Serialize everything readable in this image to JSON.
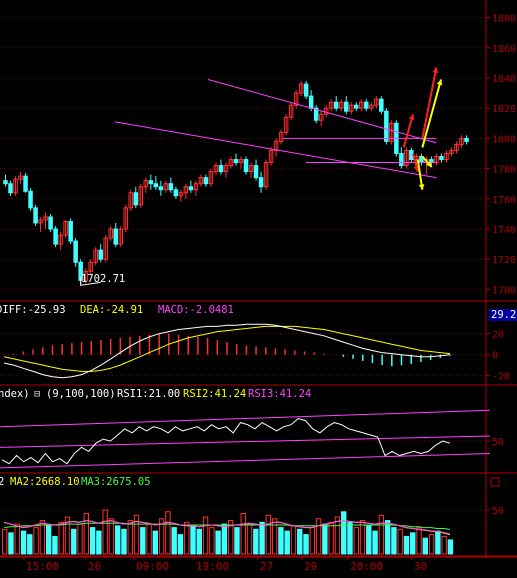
{
  "chart_data": [
    {
      "type": "candlestick",
      "panel": "price",
      "y_ticks": [
        "1880",
        "1860",
        "1840",
        "1820",
        "1800",
        "1780",
        "1760",
        "1740",
        "1720",
        "1700"
      ],
      "ylim": [
        1693,
        1885
      ],
      "low_annotation": "1702.71",
      "candles": [
        [
          1772,
          1776,
          1768,
          1770
        ],
        [
          1770,
          1772,
          1762,
          1764
        ],
        [
          1764,
          1775,
          1762,
          1773
        ],
        [
          1773,
          1778,
          1770,
          1775
        ],
        [
          1775,
          1777,
          1764,
          1765
        ],
        [
          1765,
          1767,
          1752,
          1754
        ],
        [
          1754,
          1756,
          1742,
          1744
        ],
        [
          1744,
          1748,
          1738,
          1746
        ],
        [
          1746,
          1751,
          1740,
          1748
        ],
        [
          1748,
          1750,
          1738,
          1740
        ],
        [
          1740,
          1742,
          1728,
          1730
        ],
        [
          1730,
          1738,
          1726,
          1736
        ],
        [
          1736,
          1746,
          1734,
          1745
        ],
        [
          1745,
          1747,
          1730,
          1732
        ],
        [
          1732,
          1734,
          1715,
          1718
        ],
        [
          1718,
          1720,
          1702.71,
          1706
        ],
        [
          1706,
          1714,
          1704,
          1712
        ],
        [
          1712,
          1720,
          1710,
          1718
        ],
        [
          1718,
          1728,
          1716,
          1726
        ],
        [
          1726,
          1730,
          1718,
          1720
        ],
        [
          1720,
          1736,
          1718,
          1734
        ],
        [
          1734,
          1742,
          1732,
          1740
        ],
        [
          1740,
          1744,
          1728,
          1730
        ],
        [
          1730,
          1742,
          1728,
          1740
        ],
        [
          1740,
          1756,
          1738,
          1754
        ],
        [
          1754,
          1766,
          1752,
          1764
        ],
        [
          1764,
          1768,
          1754,
          1756
        ],
        [
          1756,
          1770,
          1754,
          1768
        ],
        [
          1768,
          1774,
          1764,
          1772
        ],
        [
          1772,
          1776,
          1766,
          1770
        ],
        [
          1770,
          1775,
          1766,
          1768
        ],
        [
          1768,
          1772,
          1762,
          1766
        ],
        [
          1766,
          1772,
          1764,
          1770
        ],
        [
          1770,
          1774,
          1764,
          1766
        ],
        [
          1766,
          1768,
          1760,
          1762
        ],
        [
          1762,
          1766,
          1758,
          1764
        ],
        [
          1764,
          1770,
          1760,
          1768
        ],
        [
          1768,
          1772,
          1764,
          1766
        ],
        [
          1766,
          1772,
          1762,
          1770
        ],
        [
          1770,
          1776,
          1768,
          1774
        ],
        [
          1774,
          1776,
          1768,
          1770
        ],
        [
          1770,
          1780,
          1768,
          1778
        ],
        [
          1778,
          1784,
          1776,
          1782
        ],
        [
          1782,
          1786,
          1776,
          1778
        ],
        [
          1778,
          1784,
          1774,
          1782
        ],
        [
          1782,
          1788,
          1780,
          1786
        ],
        [
          1786,
          1790,
          1782,
          1784
        ],
        [
          1784,
          1788,
          1780,
          1786
        ],
        [
          1786,
          1788,
          1776,
          1778
        ],
        [
          1778,
          1784,
          1774,
          1782
        ],
        [
          1782,
          1786,
          1772,
          1774
        ],
        [
          1774,
          1778,
          1764,
          1768
        ],
        [
          1768,
          1786,
          1766,
          1784
        ],
        [
          1784,
          1794,
          1782,
          1792
        ],
        [
          1792,
          1800,
          1788,
          1798
        ],
        [
          1798,
          1806,
          1796,
          1804
        ],
        [
          1804,
          1816,
          1802,
          1814
        ],
        [
          1814,
          1824,
          1812,
          1822
        ],
        [
          1822,
          1832,
          1820,
          1830
        ],
        [
          1830,
          1838,
          1828,
          1836
        ],
        [
          1836,
          1838,
          1826,
          1828
        ],
        [
          1828,
          1832,
          1818,
          1820
        ],
        [
          1820,
          1822,
          1810,
          1812
        ],
        [
          1812,
          1818,
          1808,
          1816
        ],
        [
          1816,
          1822,
          1814,
          1820
        ],
        [
          1820,
          1826,
          1818,
          1824
        ],
        [
          1824,
          1828,
          1818,
          1820
        ],
        [
          1820,
          1826,
          1818,
          1824
        ],
        [
          1824,
          1828,
          1816,
          1818
        ],
        [
          1818,
          1824,
          1816,
          1822
        ],
        [
          1822,
          1824,
          1818,
          1820
        ],
        [
          1820,
          1826,
          1818,
          1824
        ],
        [
          1824,
          1826,
          1818,
          1820
        ],
        [
          1820,
          1824,
          1818,
          1822
        ],
        [
          1822,
          1828,
          1820,
          1826
        ],
        [
          1826,
          1828,
          1816,
          1818
        ],
        [
          1818,
          1820,
          1796,
          1798
        ],
        [
          1798,
          1812,
          1796,
          1810
        ],
        [
          1810,
          1812,
          1788,
          1790
        ],
        [
          1790,
          1794,
          1780,
          1782
        ],
        [
          1782,
          1794,
          1780,
          1792
        ],
        [
          1792,
          1794,
          1784,
          1786
        ],
        [
          1786,
          1790,
          1782,
          1788
        ],
        [
          1788,
          1790,
          1782,
          1784
        ],
        [
          1784,
          1788,
          1776,
          1786
        ],
        [
          1786,
          1788,
          1782,
          1784
        ],
        [
          1784,
          1790,
          1782,
          1788
        ],
        [
          1788,
          1790,
          1784,
          1786
        ],
        [
          1786,
          1792,
          1784,
          1790
        ],
        [
          1790,
          1794,
          1788,
          1792
        ],
        [
          1792,
          1798,
          1790,
          1796
        ],
        [
          1796,
          1802,
          1794,
          1800
        ],
        [
          1800,
          1802,
          1796,
          1798
        ]
      ],
      "trend_lines": [
        {
          "color": "#ff40ff",
          "from": [
            44,
            1839
          ],
          "to": [
            93,
            1797
          ]
        },
        {
          "color": "#ff40ff",
          "from": [
            24,
            1811
          ],
          "to": [
            93,
            1774
          ]
        },
        {
          "color": "#ff40ff",
          "from": [
            60,
            1800
          ],
          "to": [
            93,
            1800
          ]
        },
        {
          "color": "#ff40ff",
          "from": [
            65,
            1784
          ],
          "to": [
            93,
            1784
          ]
        }
      ],
      "arrows": [
        {
          "color": "#ff2020",
          "from": [
            86,
            1794
          ],
          "to": [
            88,
            1816
          ]
        },
        {
          "color": "#ff2020",
          "from": [
            90,
            1800
          ],
          "to": [
            93,
            1847
          ]
        },
        {
          "color": "#ff2020",
          "from": [
            88,
            1790
          ],
          "to": [
            89,
            1778
          ]
        },
        {
          "color": "#ffff00",
          "from": [
            90,
            1794
          ],
          "to": [
            94,
            1839
          ]
        },
        {
          "color": "#ffff00",
          "from": [
            90,
            1788
          ],
          "to": [
            92,
            1781
          ]
        },
        {
          "color": "#ffff00",
          "from": [
            89,
            1786
          ],
          "to": [
            90,
            1766
          ]
        }
      ]
    },
    {
      "type": "macd",
      "panel": "macd",
      "diff_label": "DIFF:-25.93",
      "dea_label": "DEA:-24.91",
      "macd_label": "MACD:-2.0481",
      "value_tag": "29.22",
      "y_ticks": [
        "20",
        "0",
        "-20"
      ],
      "ylim": [
        -28,
        35
      ],
      "diff": [
        -8,
        -10,
        -13,
        -16,
        -19,
        -21,
        -22,
        -21,
        -19,
        -15,
        -10,
        -4,
        2,
        8,
        13,
        17,
        20,
        22,
        24,
        25,
        26,
        27,
        27,
        28,
        28,
        29,
        29,
        29,
        28,
        26,
        24,
        22,
        20,
        18,
        15,
        12,
        9,
        6,
        4,
        2,
        1,
        0,
        -1,
        -2,
        -2,
        -1,
        0
      ],
      "dea": [
        -2,
        -4,
        -6,
        -8,
        -10,
        -12,
        -14,
        -15,
        -16,
        -16,
        -15,
        -13,
        -10,
        -6,
        -2,
        2,
        6,
        10,
        13,
        16,
        18,
        20,
        22,
        23,
        24,
        25,
        26,
        27,
        27,
        27,
        27,
        26,
        25,
        24,
        22,
        20,
        18,
        16,
        14,
        12,
        10,
        8,
        6,
        4,
        3,
        2,
        1
      ],
      "histogram": [
        0,
        1,
        3,
        5,
        7,
        9,
        10,
        11,
        12,
        13,
        14,
        15,
        16,
        17,
        18,
        19,
        20,
        20,
        19,
        18,
        17,
        16,
        14,
        12,
        10,
        9,
        8,
        7,
        6,
        5,
        4,
        3,
        2,
        1,
        0,
        -2,
        -4,
        -6,
        -8,
        -10,
        -11,
        -10,
        -9,
        -7,
        -5,
        -3,
        -1
      ]
    },
    {
      "type": "rsi",
      "panel": "rsi",
      "header_prefix": "ndex)",
      "params": "(9,100,100)",
      "rsi1_label": "RSI1:21.00",
      "rsi2_label": "RSI2:41.24",
      "rsi3_label": "RSI3:41.24",
      "y_ticks": [
        "50"
      ],
      "ylim": [
        20,
        90
      ],
      "rsi": [
        32,
        28,
        36,
        30,
        34,
        29,
        38,
        30,
        33,
        28,
        38,
        44,
        40,
        48,
        52,
        50,
        56,
        62,
        58,
        64,
        60,
        64,
        62,
        58,
        64,
        60,
        62,
        64,
        60,
        66,
        62,
        64,
        58,
        68,
        66,
        62,
        68,
        64,
        60,
        64,
        66,
        72,
        70,
        62,
        58,
        64,
        68,
        66,
        62,
        60,
        58,
        56,
        54,
        36,
        40,
        36,
        38,
        40,
        38,
        40,
        46,
        50,
        48
      ],
      "bands": [
        {
          "color": "#ff40ff",
          "from": [
            0,
            64
          ],
          "to": [
            100,
            80
          ]
        },
        {
          "color": "#ff40ff",
          "from": [
            0,
            44
          ],
          "to": [
            100,
            55
          ]
        },
        {
          "color": "#ff40ff",
          "from": [
            0,
            24
          ],
          "to": [
            100,
            38
          ]
        }
      ]
    },
    {
      "type": "bar",
      "panel": "volume",
      "header_prefix": "2",
      "ma2_label": "MA2:2668.10",
      "ma3_label": "MA3:2675.05",
      "y_ticks": [
        "50"
      ],
      "ylim": [
        0,
        75
      ],
      "volume": [
        28,
        24,
        34,
        26,
        22,
        30,
        38,
        32,
        20,
        36,
        42,
        28,
        34,
        46,
        30,
        26,
        50,
        40,
        32,
        28,
        38,
        44,
        30,
        34,
        26,
        40,
        48,
        30,
        22,
        36,
        32,
        28,
        42,
        30,
        26,
        34,
        38,
        30,
        46,
        34,
        28,
        36,
        44,
        40,
        30,
        26,
        32,
        28,
        22,
        30,
        40,
        34,
        36,
        42,
        48,
        36,
        30,
        38,
        32,
        26,
        44,
        38,
        30,
        28,
        20,
        24,
        30,
        18,
        22,
        26,
        20,
        16
      ],
      "up": [
        1,
        0,
        1,
        0,
        0,
        1,
        1,
        0,
        0,
        1,
        1,
        0,
        1,
        1,
        0,
        0,
        1,
        1,
        0,
        0,
        1,
        1,
        0,
        1,
        0,
        1,
        1,
        0,
        0,
        1,
        0,
        0,
        1,
        1,
        0,
        0,
        1,
        0,
        1,
        1,
        0,
        0,
        1,
        1,
        0,
        0,
        1,
        0,
        0,
        1,
        1,
        0,
        1,
        1,
        0,
        0,
        1,
        1,
        0,
        0,
        1,
        0,
        0,
        1,
        0,
        0,
        1,
        0,
        1,
        0,
        1,
        0
      ],
      "ma_fast": [
        36,
        34,
        32,
        30,
        31,
        33,
        35,
        34,
        33,
        34,
        36,
        37,
        36,
        38,
        37,
        35,
        37,
        38,
        36,
        34,
        35,
        37,
        36,
        35,
        33,
        34,
        36,
        35,
        33,
        32,
        32,
        31,
        32,
        33,
        32,
        31,
        32,
        33,
        34,
        35,
        34,
        33,
        34,
        36,
        36,
        34,
        32,
        31,
        30,
        30,
        32,
        34,
        35,
        37,
        38,
        37,
        36,
        36,
        35,
        34,
        35,
        35,
        34,
        32,
        30,
        29,
        28,
        27,
        26,
        25,
        24,
        22
      ],
      "ma_slow": [
        30,
        31,
        31,
        32,
        32,
        32,
        33,
        33,
        33,
        33,
        34,
        34,
        34,
        35,
        35,
        35,
        35,
        35,
        35,
        35,
        34,
        34,
        34,
        34,
        34,
        34,
        34,
        34,
        33,
        33,
        33,
        33,
        33,
        33,
        33,
        33,
        33,
        33,
        33,
        33,
        33,
        33,
        33,
        33,
        33,
        33,
        32,
        32,
        32,
        32,
        32,
        32,
        32,
        32,
        33,
        33,
        33,
        33,
        33,
        33,
        33,
        33,
        33,
        32,
        32,
        31,
        31,
        30,
        30,
        29,
        29,
        28
      ]
    }
  ],
  "time_axis": {
    "labels": [
      "15:00",
      "26",
      "09:00",
      "19:00",
      "27",
      "29",
      "20:00",
      "30"
    ]
  },
  "colors": {
    "background": "#000000",
    "grid": "#7a0000",
    "axis": "#b00000",
    "up": "#ff3030",
    "down": "#40ffff",
    "white": "#ffffff",
    "yellow": "#ffff00",
    "magenta": "#ff40ff",
    "green": "#40ff40",
    "tag_bg": "#0000a0"
  }
}
